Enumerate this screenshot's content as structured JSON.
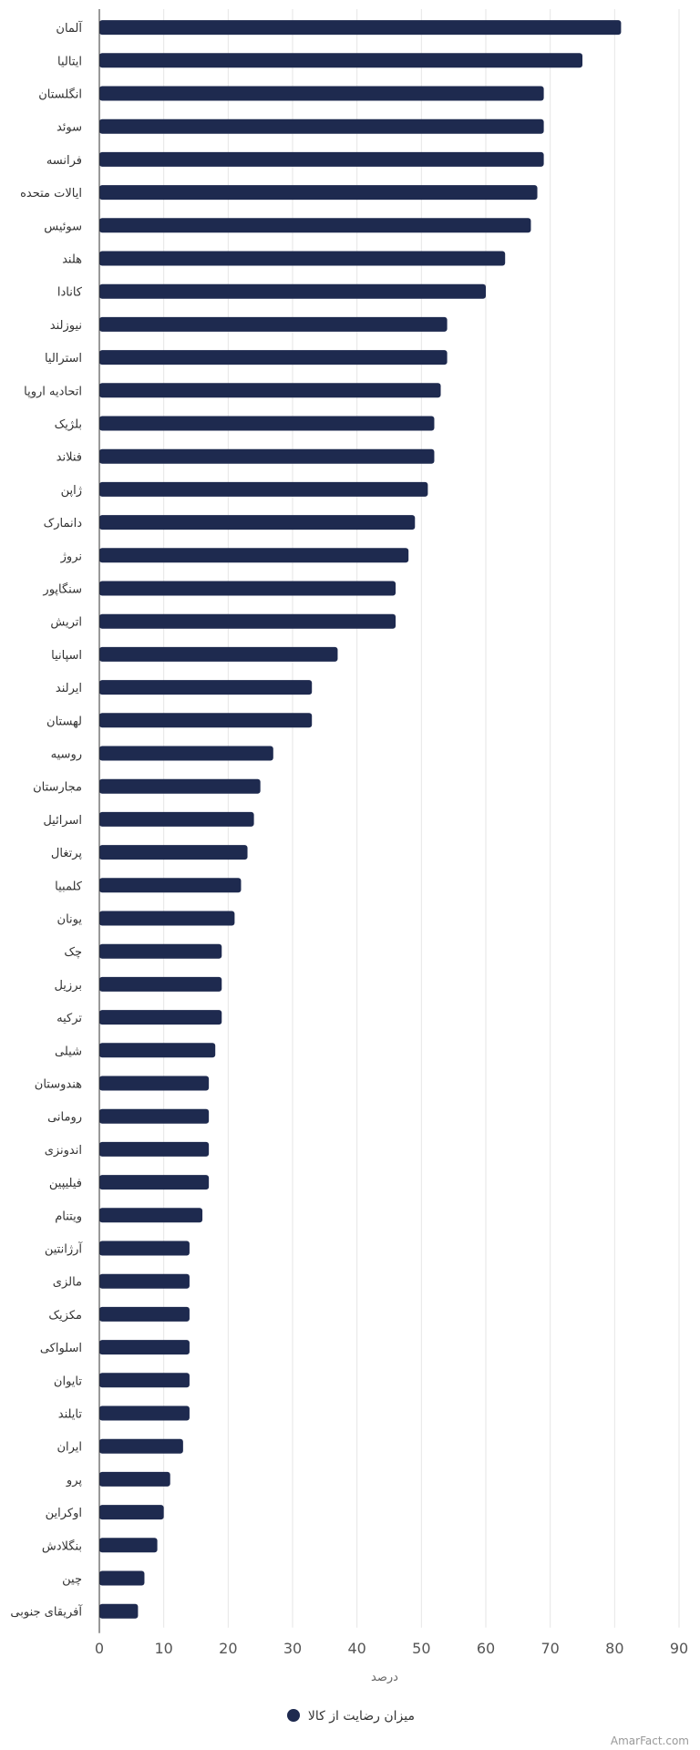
{
  "chart_data": {
    "type": "bar",
    "orientation": "horizontal",
    "categories": [
      "آلمان",
      "ایتالیا",
      "انگلستان",
      "سوئد",
      "فرانسه",
      "ایالات متحده",
      "سوئیس",
      "هلند",
      "کانادا",
      "نیوزلند",
      "استرالیا",
      "اتحادیه اروپا",
      "بلژیک",
      "فنلاند",
      "ژاپن",
      "دانمارک",
      "نروژ",
      "سنگاپور",
      "اتریش",
      "اسپانیا",
      "ایرلند",
      "لهستان",
      "روسیه",
      "مجارستان",
      "اسرائیل",
      "پرتغال",
      "کلمبیا",
      "یونان",
      "چک",
      "برزیل",
      "ترکیه",
      "شیلی",
      "هندوستان",
      "رومانی",
      "اندونزی",
      "فیلیپین",
      "ویتنام",
      "آرژانتین",
      "مالزی",
      "مکزیک",
      "اسلواکی",
      "تایوان",
      "تایلند",
      "ایران",
      "پرو",
      "اوکراین",
      "بنگلادش",
      "چین",
      "آفریقای جنوبی"
    ],
    "series": [
      {
        "name": "میزان رضایت از کالا",
        "values": [
          81,
          75,
          69,
          69,
          69,
          68,
          67,
          63,
          60,
          54,
          54,
          53,
          52,
          52,
          51,
          49,
          48,
          46,
          46,
          37,
          33,
          33,
          27,
          25,
          24,
          23,
          22,
          21,
          19,
          19,
          19,
          18,
          17,
          17,
          17,
          17,
          16,
          14,
          14,
          14,
          14,
          14,
          14,
          13,
          11,
          10,
          9,
          7,
          6
        ]
      }
    ],
    "xlabel": "درصد",
    "xlim": [
      0,
      90
    ],
    "xticks": [
      0,
      10,
      20,
      30,
      40,
      50,
      60,
      70,
      80,
      90
    ],
    "grid": "vertical",
    "legend": "bottom-center",
    "colors": {
      "bar": "#1e2a4f",
      "grid": "#e6e6e6",
      "axis": "#333333"
    }
  },
  "credit": "AmarFact.com"
}
